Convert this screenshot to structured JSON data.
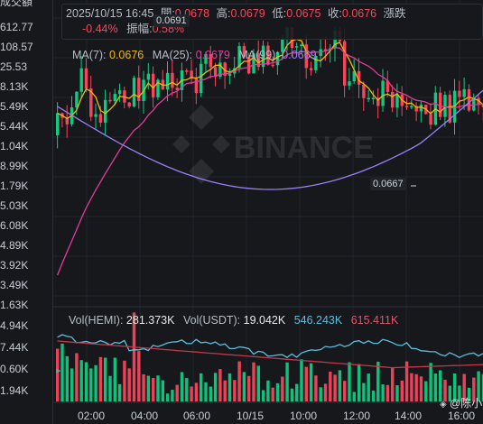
{
  "left_axis": {
    "header": "成交額",
    "price_ticks": [
      "612.77",
      "108.57",
      "25.53",
      "8.13K",
      "5.49K",
      "5.44K",
      "1.04K",
      "8.99K",
      "1.79K",
      "5.03K",
      "6.08K",
      "4.89K",
      "3.92K",
      "3.49K",
      "1.63K"
    ],
    "volume_ticks": [
      "4.94K",
      "7.44K",
      "0.60K",
      "1.94K"
    ]
  },
  "ohlc": {
    "datetime": "2025/10/15 16:45",
    "open_label": "開:",
    "open": "0.0678",
    "high_label": "高:",
    "high": "0.0679",
    "low_label": "低:",
    "low": "0.0675",
    "close_label": "收:",
    "close": "0.0676",
    "change_label": "漲跌",
    "change_pct": "-0.44%",
    "amplitude_label": "振幅:",
    "amplitude": "0.58%"
  },
  "ma": {
    "ma7_label": "MA(7):",
    "ma7": "0.0676",
    "ma25_label": "MA(25):",
    "ma25": "0.0679",
    "ma99_label": "MA(99):",
    "ma99": "0.0669"
  },
  "annotations": {
    "peak": "0.0691",
    "trough": "0.0667"
  },
  "watermark_logo": "BINANCE",
  "volume": {
    "vol_hemi_label": "Vol(HEMI):",
    "vol_hemi": "281.373K",
    "vol_usdt_label": "Vol(USDT):",
    "vol_usdt": "19.042K",
    "ma_a": "546.243K",
    "ma_b": "615.411K"
  },
  "x_axis": [
    "02:00",
    "04:00",
    "06:00",
    "10/15",
    "10:00",
    "12:00",
    "14:00",
    "16:00"
  ],
  "credit": "@陈小艺",
  "colors": {
    "up": "#0ecb81",
    "down": "#f6465d",
    "ma7": "#f0b90b",
    "ma25": "#e33b9a",
    "ma99": "#9b7ff5",
    "vol_ma_a": "#5bc0de",
    "vol_ma_b": "#c0394b"
  }
}
